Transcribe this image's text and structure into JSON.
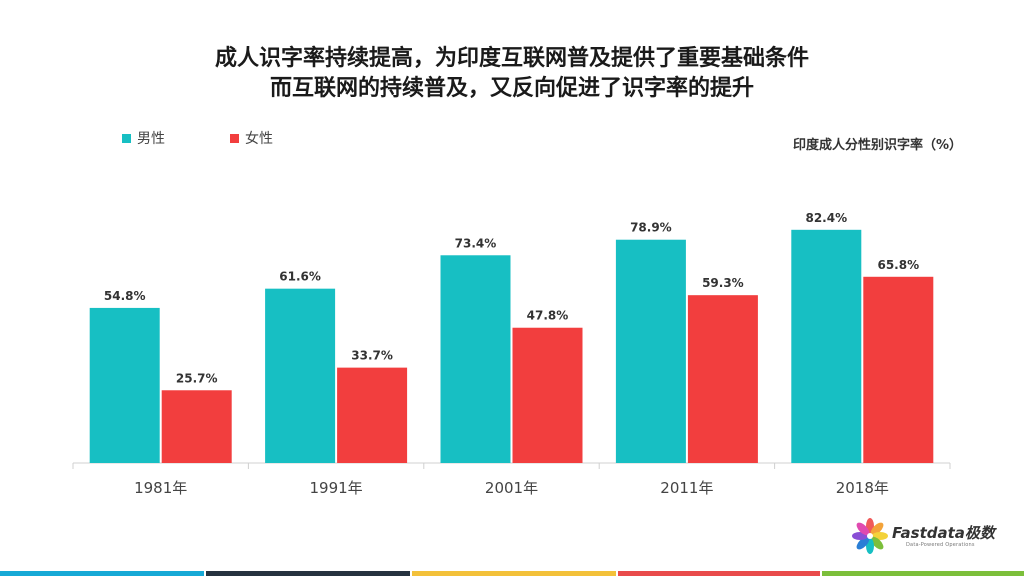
{
  "title_lines": [
    "成人识字率持续提高，为印度互联网普及提供了重要基础条件",
    "而互联网的持续普及，又反向促进了识字率的提升"
  ],
  "legend": [
    {
      "label": "男性",
      "color": "#17bfc3"
    },
    {
      "label": "女性",
      "color": "#f23e3e"
    }
  ],
  "chart_subtitle": "印度成人分性别识字率（%）",
  "logo": {
    "name": "Fastdata极数",
    "tagline": "Data-Powered Operations"
  },
  "chart_data": {
    "type": "bar",
    "categories": [
      "1981年",
      "1991年",
      "2001年",
      "2011年",
      "2018年"
    ],
    "series": [
      {
        "name": "男性",
        "values": [
          54.8,
          61.6,
          73.4,
          78.9,
          82.4
        ],
        "labels": [
          "54.8%",
          "61.6%",
          "73.4%",
          "78.9%",
          "82.4%"
        ],
        "color": "#17bfc3"
      },
      {
        "name": "女性",
        "values": [
          25.7,
          33.7,
          47.8,
          59.3,
          65.8
        ],
        "labels": [
          "25.7%",
          "33.7%",
          "47.8%",
          "59.3%",
          "65.8%"
        ],
        "color": "#f23e3e"
      }
    ],
    "title": "印度成人分性别识字率（%）",
    "xlabel": "",
    "ylabel": "",
    "grid": false,
    "legend_position": "top-left"
  },
  "colors": {
    "stripe_1": "#17a9d6",
    "stripe_2": "#26323f",
    "stripe_3": "#f3c13a",
    "stripe_4": "#e94b4b",
    "stripe_5": "#7cbf3b"
  }
}
